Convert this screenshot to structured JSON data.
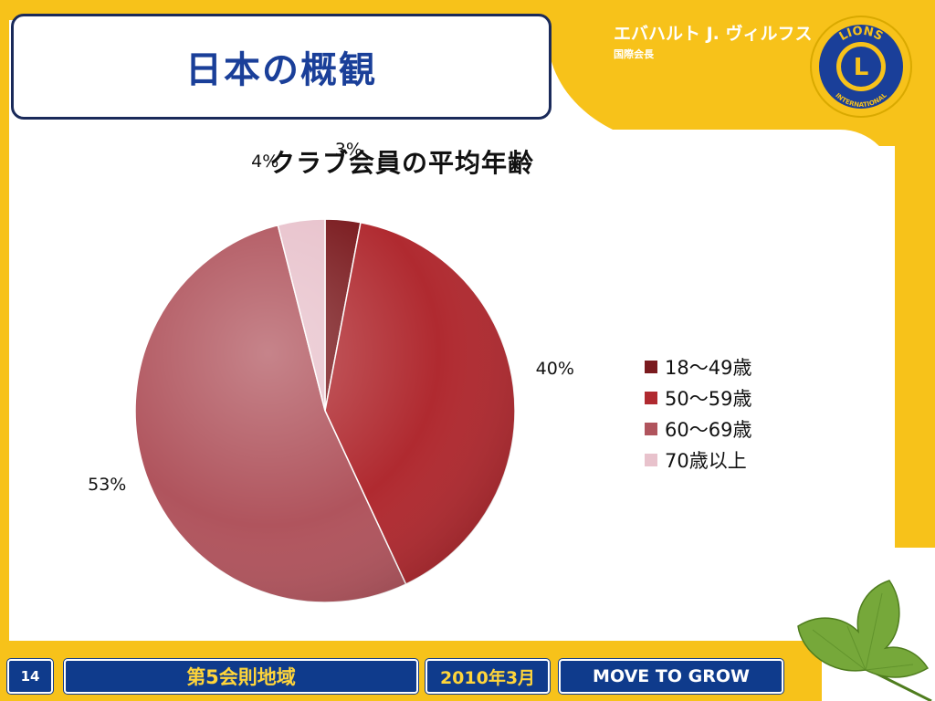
{
  "header": {
    "title": "日本の概観",
    "presenter_name": "エバハルト J. ヴィルフス",
    "presenter_role": "国際会長",
    "logo_text_top": "LIONS",
    "logo_letter": "L",
    "logo_text_bottom": "INTERNATIONAL"
  },
  "chart_data": {
    "type": "pie",
    "title": "クラブ会員の平均年齢",
    "categories": [
      "18〜49歳",
      "50〜59歳",
      "60〜69歳",
      "70歳以上"
    ],
    "values": [
      3,
      40,
      53,
      4
    ],
    "labels": [
      "3%",
      "40%",
      "53%",
      "4%"
    ],
    "colors": [
      "#7a1a1e",
      "#b02a30",
      "#b0545d",
      "#e8c2cc"
    ],
    "legend_position": "right"
  },
  "footer": {
    "page_number": "14",
    "district": "第5会則地域",
    "date": "2010年3月",
    "slogan": "MOVE TO GROW"
  }
}
